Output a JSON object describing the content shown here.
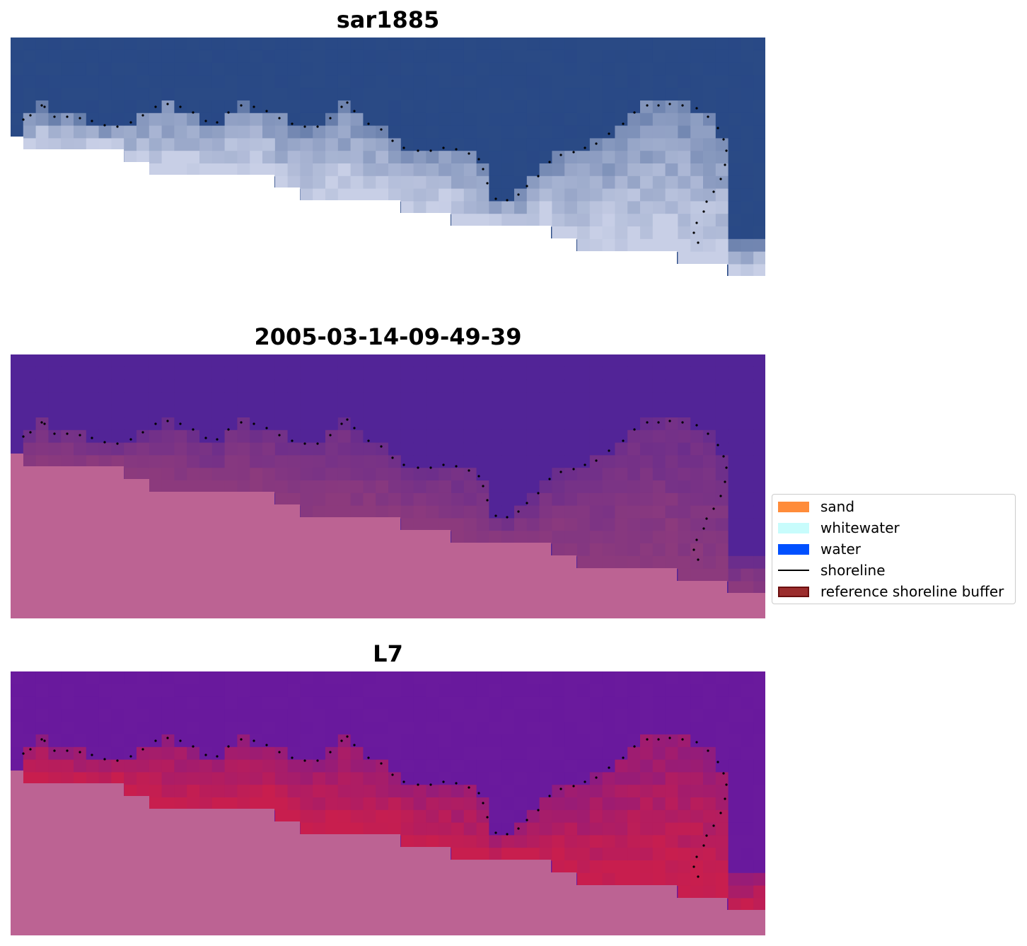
{
  "panels": [
    {
      "title": "sar1885",
      "colors": {
        "sea": "#2a4a85",
        "land": "#ffffff",
        "foam": "#c8cfe6",
        "deep": "#22418a"
      }
    },
    {
      "title": "2005-03-14-09-49-39",
      "colors": {
        "sea": "#522497",
        "land": "#bc6393",
        "foam": "#8c3a7d",
        "deep": "#522497"
      }
    },
    {
      "title": "L7",
      "colors": {
        "sea": "#6a1a9d",
        "land": "#bc6393",
        "foam": "#c81e4e",
        "deep": "#62129c"
      }
    }
  ],
  "legend": {
    "items": [
      {
        "label": "sand",
        "kind": "patch",
        "color": "#ff8c3a"
      },
      {
        "label": "whitewater",
        "kind": "patch",
        "color": "#c8fcfc"
      },
      {
        "label": "water",
        "kind": "patch",
        "color": "#0050ff"
      },
      {
        "label": "shoreline",
        "kind": "line",
        "color": "#000000"
      },
      {
        "label": "reference shoreline buffer",
        "kind": "patch",
        "color": "#9b2d2d",
        "edge": "#6b0f0f"
      }
    ]
  }
}
